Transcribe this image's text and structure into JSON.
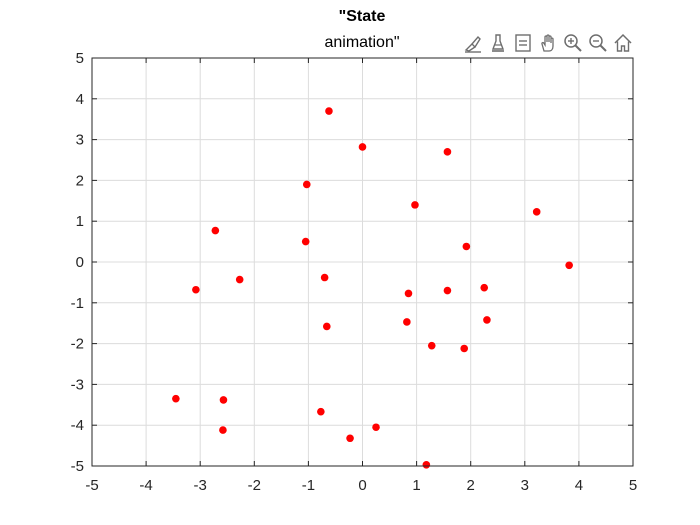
{
  "title": {
    "line1": "\"State",
    "line2": "animation\""
  },
  "toolbar": {
    "buttons": [
      {
        "icon": "brush-icon"
      },
      {
        "icon": "data-tips-icon"
      },
      {
        "icon": "legend-icon"
      },
      {
        "icon": "pan-hand-icon"
      },
      {
        "icon": "zoom-in-icon"
      },
      {
        "icon": "zoom-out-icon"
      },
      {
        "icon": "home-icon"
      }
    ]
  },
  "colors": {
    "marker": "#ff0000",
    "axis": "#262626",
    "grid": "#dcdcdc",
    "toolbar_icon": "#6e6e6e"
  },
  "chart_data": {
    "type": "scatter",
    "title": "\"State\nanimation\"",
    "xlabel": "",
    "ylabel": "",
    "xlim": [
      -5,
      5
    ],
    "ylim": [
      -5,
      5
    ],
    "xticks": [
      -5,
      -4,
      -3,
      -2,
      -1,
      0,
      1,
      2,
      3,
      4,
      5
    ],
    "yticks": [
      -5,
      -4,
      -3,
      -2,
      -1,
      0,
      1,
      2,
      3,
      4,
      5
    ],
    "grid": true,
    "series": [
      {
        "name": "",
        "color": "#ff0000",
        "points": [
          {
            "x": -0.62,
            "y": 3.7
          },
          {
            "x": 0.0,
            "y": 2.82
          },
          {
            "x": 1.57,
            "y": 2.7
          },
          {
            "x": -1.03,
            "y": 1.9
          },
          {
            "x": 0.97,
            "y": 1.4
          },
          {
            "x": 3.22,
            "y": 1.23
          },
          {
            "x": -2.72,
            "y": 0.77
          },
          {
            "x": -1.05,
            "y": 0.5
          },
          {
            "x": 1.92,
            "y": 0.38
          },
          {
            "x": 3.82,
            "y": -0.08
          },
          {
            "x": -2.27,
            "y": -0.43
          },
          {
            "x": -0.7,
            "y": -0.38
          },
          {
            "x": -3.08,
            "y": -0.68
          },
          {
            "x": 0.85,
            "y": -0.77
          },
          {
            "x": 1.57,
            "y": -0.7
          },
          {
            "x": 2.25,
            "y": -0.63
          },
          {
            "x": -0.66,
            "y": -1.58
          },
          {
            "x": 0.82,
            "y": -1.47
          },
          {
            "x": 2.3,
            "y": -1.42
          },
          {
            "x": 1.28,
            "y": -2.05
          },
          {
            "x": 1.88,
            "y": -2.12
          },
          {
            "x": -3.45,
            "y": -3.35
          },
          {
            "x": -2.57,
            "y": -3.38
          },
          {
            "x": -0.77,
            "y": -3.67
          },
          {
            "x": 0.25,
            "y": -4.05
          },
          {
            "x": -2.58,
            "y": -4.12
          },
          {
            "x": -0.23,
            "y": -4.32
          },
          {
            "x": 1.18,
            "y": -4.97
          }
        ]
      }
    ]
  }
}
